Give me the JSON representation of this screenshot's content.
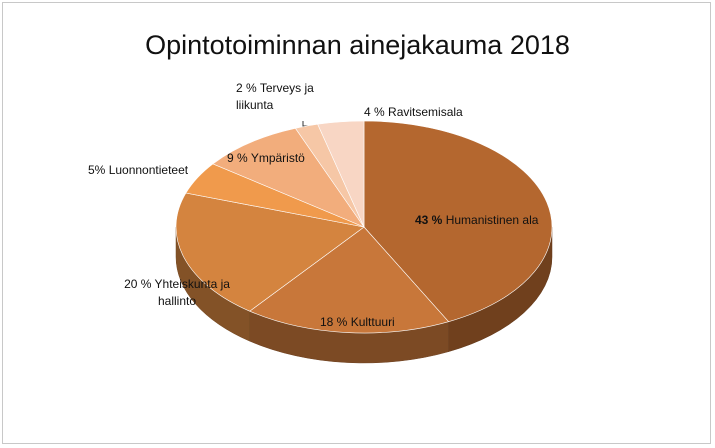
{
  "chart_data": {
    "type": "pie3d",
    "title": "Opintotoiminnan ainejakauma  2018",
    "categories": [
      "Humanistinen ala",
      "Kulttuuri",
      "Yhteiskunta ja hallinto",
      "Luonnontieteet",
      "Ympäristö",
      "Terveys ja liikunta",
      "Ravitsemisala"
    ],
    "values": [
      43,
      18,
      20,
      5,
      9,
      2,
      4
    ],
    "value_labels": [
      "43 %",
      "18 %",
      "20 %",
      "5%",
      "9 %",
      "2 %",
      "4 %"
    ],
    "colors": [
      "#b4672f",
      "#c8773a",
      "#d4843f",
      "#f09a4c",
      "#f2ad7c",
      "#f6c7a6",
      "#f8d6c4"
    ]
  }
}
